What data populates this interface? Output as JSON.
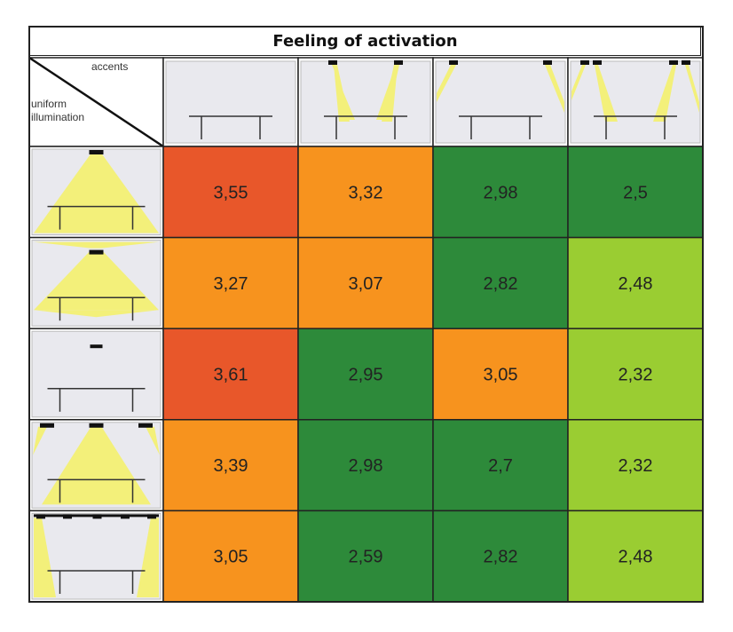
{
  "title": "Feeling of activation",
  "corner": {
    "top_label": "accents",
    "bottom_label_line1": "uniform",
    "bottom_label_line2": "illumination"
  },
  "colors": {
    "red": "#e8572a",
    "orange": "#f7931e",
    "dark_green": "#2d8a3a",
    "light_green": "#9acd32",
    "light_yellow": "#f3f07a",
    "panel_bg": "#e9e9ee"
  },
  "chart_data": {
    "type": "heatmap",
    "title": "Feeling of activation",
    "columns": [
      "accents-1",
      "accents-2",
      "accents-3",
      "accents-4"
    ],
    "rows": [
      "uniform-1",
      "uniform-2",
      "uniform-3",
      "uniform-4",
      "uniform-5"
    ],
    "values": [
      [
        3.55,
        3.32,
        2.98,
        2.5
      ],
      [
        3.27,
        3.07,
        2.82,
        2.48
      ],
      [
        3.61,
        2.95,
        3.05,
        2.32
      ],
      [
        3.39,
        2.98,
        2.7,
        2.32
      ],
      [
        3.05,
        2.59,
        2.82,
        2.48
      ]
    ],
    "labels": [
      [
        "3,55",
        "3,32",
        "2,98",
        "2,5"
      ],
      [
        "3,27",
        "3,07",
        "2,82",
        "2,48"
      ],
      [
        "3,61",
        "2,95",
        "3,05",
        "2,32"
      ],
      [
        "3,39",
        "2,98",
        "2,7",
        "2,32"
      ],
      [
        "3,05",
        "2,59",
        "2,82",
        "2,48"
      ]
    ],
    "cell_colors": [
      [
        "red",
        "orange",
        "dark_green",
        "dark_green"
      ],
      [
        "orange",
        "orange",
        "dark_green",
        "light_green"
      ],
      [
        "red",
        "dark_green",
        "orange",
        "light_green"
      ],
      [
        "orange",
        "dark_green",
        "dark_green",
        "light_green"
      ],
      [
        "orange",
        "dark_green",
        "dark_green",
        "light_green"
      ]
    ],
    "column_icons": [
      "no-accent-icon",
      "two-spot-center-icon",
      "two-spot-wall-icon",
      "four-spot-icon"
    ],
    "row_icons": [
      "wide-downlight-icon",
      "down-up-light-icon",
      "small-downlight-icon",
      "three-downlight-icon",
      "wall-wash-light-icon"
    ]
  }
}
